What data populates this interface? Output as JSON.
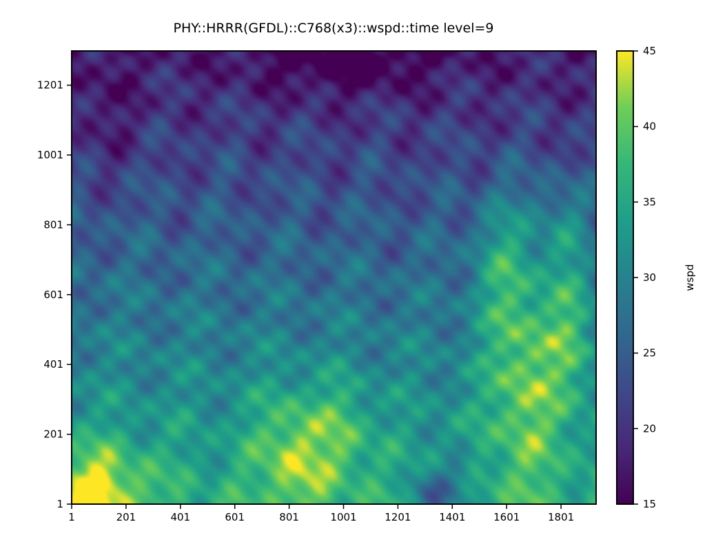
{
  "chart_data": {
    "type": "heatmap",
    "title": "PHY::HRRR(GFDL)::C768(x3)::wspd::time level=9",
    "xlabel": "",
    "ylabel": "",
    "x_ticks": [
      "1",
      "201",
      "401",
      "601",
      "801",
      "1001",
      "1201",
      "1401",
      "1601",
      "1801"
    ],
    "y_ticks": [
      "1",
      "201",
      "401",
      "601",
      "801",
      "1001",
      "1201"
    ],
    "xlim": [
      1,
      1930
    ],
    "ylim": [
      1,
      1299
    ],
    "colorbar": {
      "label": "wspd",
      "ticks": [
        "15",
        "20",
        "25",
        "30",
        "35",
        "40",
        "45"
      ],
      "range": [
        15,
        45
      ],
      "colormap": "viridis"
    },
    "field_description": "wind speed field: low (~15-20) in the top/north, increasing toward the bottom with high values (~40-45) near the lower-left, lower-center and right side; small low patch near bottom around x~1350",
    "colors": {
      "viridis_min": "#440154",
      "viridis_mid": "#21918c",
      "viridis_max": "#fde725"
    }
  }
}
